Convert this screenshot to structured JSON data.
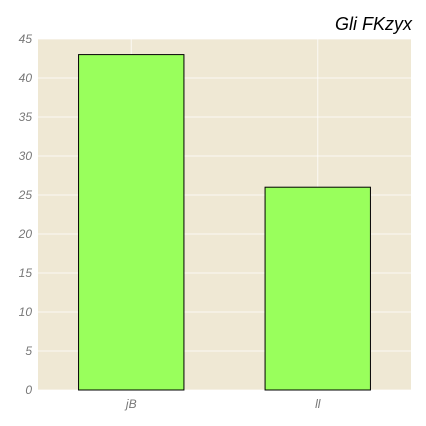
{
  "chart_data": {
    "type": "bar",
    "title": "Gli FKzyx",
    "xlabel": "",
    "ylabel": "",
    "categories": [
      "jB",
      "ll"
    ],
    "values": [
      43,
      26
    ],
    "ylim": [
      0,
      45
    ],
    "yticks": [
      0,
      5,
      10,
      15,
      20,
      25,
      30,
      35,
      40,
      45
    ],
    "grid": true,
    "legend": "none",
    "colors": {
      "plot_background": "#efe8d4",
      "bar_fill": "#99ff5c",
      "bar_edge": "#000000",
      "grid": "#ffffff",
      "tick_text": "#777777",
      "title_text": "#000000"
    }
  }
}
